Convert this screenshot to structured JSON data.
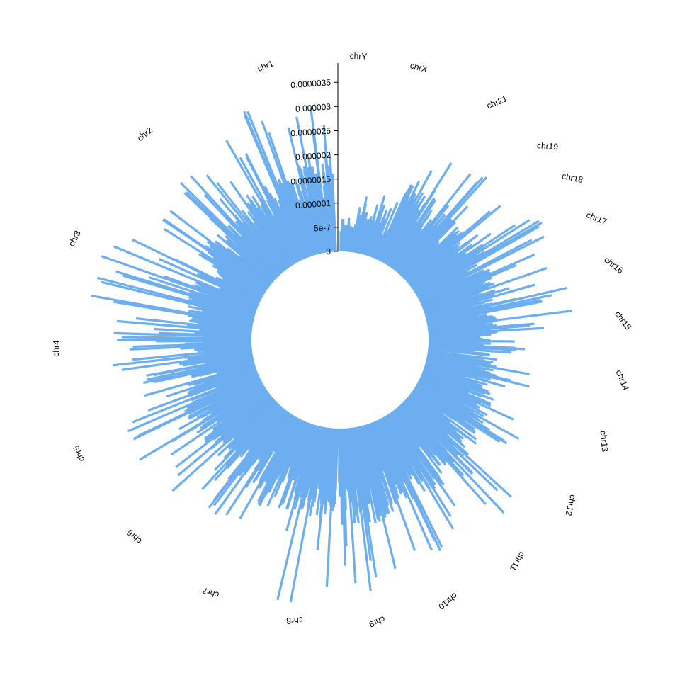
{
  "chart_data": {
    "type": "bar",
    "layout": "circular",
    "title": "",
    "xlabel": "",
    "ylabel": "",
    "grid": false,
    "bar_color": "#6caef0",
    "ylim": [
      0,
      3.9e-06
    ],
    "y_axis": {
      "ticks": [
        0,
        5e-07,
        1e-06,
        1.5e-06,
        2e-06,
        2.5e-06,
        3e-06,
        3.5e-06
      ],
      "tick_labels": [
        "0",
        "5e-7",
        "0.000001",
        "0.0000015",
        "0.000002",
        "0.0000025",
        "0.000003",
        "0.0000035"
      ]
    },
    "categories": [
      "chr1",
      "chr2",
      "chr3",
      "chr4",
      "chr5",
      "chr6",
      "chr7",
      "chr8",
      "chr9",
      "chr10",
      "chr11",
      "chr12",
      "chr13",
      "chr14",
      "chr15",
      "chr16",
      "chr17",
      "chr18",
      "chr19",
      "chr21",
      "chrX",
      "chrY"
    ],
    "category_label_angles_deg": [
      338.2,
      320.7,
      296.9,
      271.6,
      246.3,
      222.6,
      199.5,
      175.9,
      157.3,
      140.9,
      120.7,
      103.7,
      84.9,
      67.3,
      52.5,
      37.3,
      21.7,
      11.8,
      3.9,
      337.9,
      15.2,
      2.1
    ],
    "chromosomes": [
      {
        "name": "chr1",
        "start_deg": 346.0,
        "end_deg": 357.5,
        "peak": 3e-06,
        "base": 1.4e-06
      },
      {
        "name": "chr2",
        "start_deg": 325.0,
        "end_deg": 345.5,
        "peak": 3.3e-06,
        "base": 1.2e-06
      },
      {
        "name": "chr3",
        "start_deg": 300.0,
        "end_deg": 324.5,
        "peak": 2.8e-06,
        "base": 1.1e-06
      },
      {
        "name": "chr4",
        "start_deg": 274.0,
        "end_deg": 299.5,
        "peak": 3.4e-06,
        "base": 1e-06
      },
      {
        "name": "chr5",
        "start_deg": 249.0,
        "end_deg": 273.5,
        "peak": 2.9e-06,
        "base": 1.1e-06
      },
      {
        "name": "chr6",
        "start_deg": 225.0,
        "end_deg": 248.5,
        "peak": 3e-06,
        "base": 1.2e-06
      },
      {
        "name": "chr7",
        "start_deg": 202.0,
        "end_deg": 224.5,
        "peak": 2.6e-06,
        "base": 1.2e-06
      },
      {
        "name": "chr8",
        "start_deg": 181.5,
        "end_deg": 201.5,
        "peak": 3.7e-06,
        "base": 1.3e-06
      },
      {
        "name": "chr9",
        "start_deg": 162.0,
        "end_deg": 180.5,
        "peak": 3.4e-06,
        "base": 1.4e-06
      },
      {
        "name": "chr10",
        "start_deg": 144.0,
        "end_deg": 161.5,
        "peak": 3e-06,
        "base": 1.3e-06
      },
      {
        "name": "chr11",
        "start_deg": 126.0,
        "end_deg": 143.5,
        "peak": 3.1e-06,
        "base": 1.2e-06
      },
      {
        "name": "chr12",
        "start_deg": 109.0,
        "end_deg": 125.5,
        "peak": 2.4e-06,
        "base": 1.1e-06
      },
      {
        "name": "chr13",
        "start_deg": 97.0,
        "end_deg": 108.5,
        "peak": 2.2e-06,
        "base": 1e-06
      },
      {
        "name": "chr14",
        "start_deg": 88.0,
        "end_deg": 96.0,
        "peak": 2e-06,
        "base": 9e-07
      },
      {
        "name": "chr15",
        "start_deg": 76.0,
        "end_deg": 87.5,
        "peak": 3e-06,
        "base": 1e-06
      },
      {
        "name": "chr16",
        "start_deg": 64.0,
        "end_deg": 75.5,
        "peak": 2.7e-06,
        "base": 1.1e-06
      },
      {
        "name": "chr17",
        "start_deg": 54.0,
        "end_deg": 63.5,
        "peak": 3e-06,
        "base": 1.2e-06
      },
      {
        "name": "chr18",
        "start_deg": 45.0,
        "end_deg": 53.5,
        "peak": 2.5e-06,
        "base": 1.1e-06
      },
      {
        "name": "chr19",
        "start_deg": 38.0,
        "end_deg": 44.5,
        "peak": 2.7e-06,
        "base": 1.1e-06
      },
      {
        "name": "chr21",
        "start_deg": 24.0,
        "end_deg": 37.5,
        "peak": 2.5e-06,
        "base": 1.2e-06
      },
      {
        "name": "chrX",
        "start_deg": 7.5,
        "end_deg": 23.5,
        "peak": 1.3e-06,
        "base": 6e-07
      },
      {
        "name": "chrY",
        "start_deg": 0.3,
        "end_deg": 7.0,
        "peak": 7e-07,
        "base": 4e-07
      }
    ]
  }
}
